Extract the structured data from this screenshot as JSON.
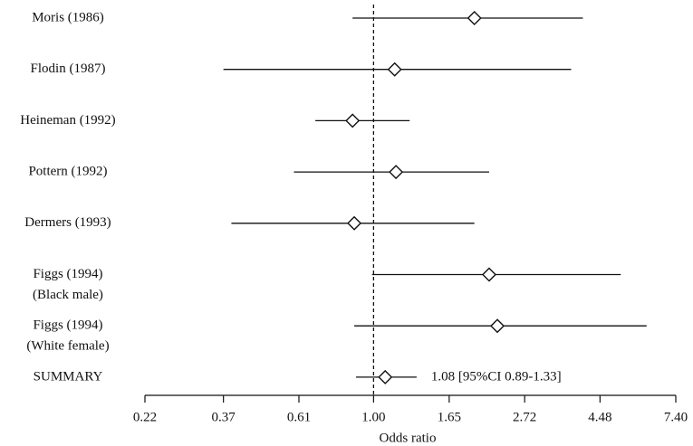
{
  "chart_data": {
    "type": "forest",
    "x_label": "Odds ratio",
    "categories": [
      "Moris (1986)",
      "Flodin (1987)",
      "Heineman (1992)",
      "Pottern (1992)",
      "Dermers (1993)",
      "Figgs (1994)",
      "Figgs (1994)",
      "SUMMARY"
    ],
    "sublabels": [
      null,
      null,
      null,
      null,
      null,
      "(Black male)",
      "(White female)",
      null
    ],
    "values": [
      1.95,
      1.15,
      0.87,
      1.16,
      0.88,
      2.15,
      2.27,
      1.08
    ],
    "lower": [
      0.87,
      0.37,
      0.68,
      0.59,
      0.39,
      0.99,
      0.88,
      0.89
    ],
    "upper": [
      4.0,
      3.7,
      1.27,
      2.15,
      1.95,
      5.14,
      6.1,
      1.33
    ],
    "annotation": "1.08 [95%CI  0.89-1.33]",
    "xlim": [
      0.22,
      7.4
    ],
    "xscale": "log",
    "xticks": [
      0.22,
      0.37,
      0.61,
      {
        "value": 1,
        "label": "1.00"
      },
      1.65,
      2.72,
      4.48,
      {
        "value": 7.4,
        "label": "7.40"
      }
    ],
    "reference_line": 1,
    "color": "#111111"
  }
}
